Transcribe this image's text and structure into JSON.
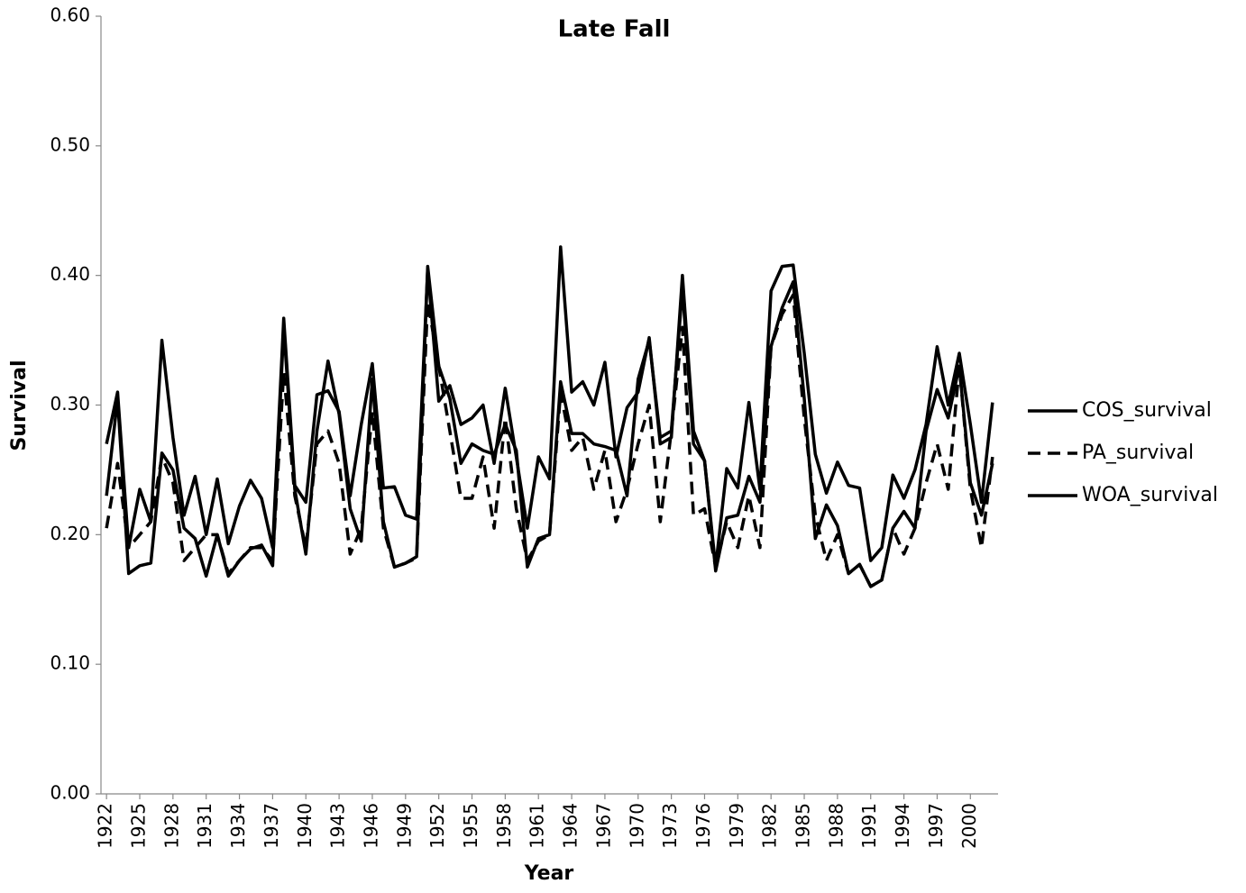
{
  "chart_data": {
    "type": "line",
    "title": "Late Fall",
    "x_label": "Year",
    "y_label": "Survival",
    "x": [
      1922,
      1923,
      1924,
      1925,
      1926,
      1927,
      1928,
      1929,
      1930,
      1931,
      1932,
      1933,
      1934,
      1935,
      1936,
      1937,
      1938,
      1939,
      1940,
      1941,
      1942,
      1943,
      1944,
      1945,
      1946,
      1947,
      1948,
      1949,
      1950,
      1951,
      1952,
      1953,
      1954,
      1955,
      1956,
      1957,
      1958,
      1959,
      1960,
      1961,
      1962,
      1963,
      1964,
      1965,
      1966,
      1967,
      1968,
      1969,
      1970,
      1971,
      1972,
      1973,
      1974,
      1975,
      1976,
      1977,
      1978,
      1979,
      1980,
      1981,
      1982,
      1983,
      1984,
      1985,
      1986,
      1987,
      1988,
      1989,
      1990,
      1991,
      1992,
      1993,
      1994,
      1995,
      1996,
      1997,
      1998,
      1999,
      2000,
      2001,
      2002
    ],
    "series": [
      {
        "name": "COS_survival",
        "color": "#000000",
        "dashed": false,
        "values": [
          0.27,
          0.31,
          0.19,
          0.235,
          0.21,
          0.35,
          0.275,
          0.215,
          0.245,
          0.2,
          0.243,
          0.193,
          0.222,
          0.242,
          0.228,
          0.19,
          0.367,
          0.238,
          0.225,
          0.308,
          0.311,
          0.295,
          0.23,
          0.285,
          0.332,
          0.236,
          0.237,
          0.215,
          0.212,
          0.405,
          0.303,
          0.315,
          0.285,
          0.29,
          0.3,
          0.255,
          0.313,
          0.26,
          0.205,
          0.26,
          0.243,
          0.422,
          0.31,
          0.318,
          0.3,
          0.333,
          0.26,
          0.298,
          0.31,
          0.352,
          0.27,
          0.275,
          0.4,
          0.28,
          0.257,
          0.175,
          0.251,
          0.236,
          0.302,
          0.235,
          0.388,
          0.407,
          0.408,
          0.34,
          0.262,
          0.232,
          0.256,
          0.238,
          0.236,
          0.18,
          0.19,
          0.246,
          0.228,
          0.25,
          0.285,
          0.345,
          0.3,
          0.34,
          0.285,
          0.225,
          0.302
        ]
      },
      {
        "name": "PA_survival",
        "color": "#000000",
        "dashed": true,
        "values": [
          0.205,
          0.255,
          0.19,
          0.2,
          0.21,
          0.26,
          0.24,
          0.18,
          0.19,
          0.2,
          0.2,
          0.17,
          0.18,
          0.19,
          0.19,
          0.18,
          0.325,
          0.23,
          0.19,
          0.27,
          0.28,
          0.255,
          0.185,
          0.205,
          0.295,
          0.205,
          0.175,
          0.178,
          0.182,
          0.38,
          0.33,
          0.28,
          0.228,
          0.228,
          0.26,
          0.205,
          0.29,
          0.22,
          0.18,
          0.195,
          0.2,
          0.31,
          0.265,
          0.275,
          0.235,
          0.265,
          0.21,
          0.235,
          0.27,
          0.3,
          0.21,
          0.28,
          0.36,
          0.215,
          0.22,
          0.175,
          0.21,
          0.19,
          0.23,
          0.19,
          0.345,
          0.37,
          0.385,
          0.29,
          0.215,
          0.18,
          0.2,
          0.17,
          0.177,
          0.16,
          0.165,
          0.205,
          0.185,
          0.205,
          0.24,
          0.27,
          0.235,
          0.33,
          0.235,
          0.19,
          0.26
        ]
      },
      {
        "name": "WOA_survival",
        "color": "#000000",
        "dashed": false,
        "values": [
          0.23,
          0.305,
          0.17,
          0.176,
          0.178,
          0.263,
          0.25,
          0.205,
          0.197,
          0.168,
          0.2,
          0.168,
          0.18,
          0.189,
          0.192,
          0.176,
          0.36,
          0.235,
          0.185,
          0.28,
          0.334,
          0.293,
          0.22,
          0.195,
          0.32,
          0.21,
          0.175,
          0.178,
          0.183,
          0.407,
          0.33,
          0.305,
          0.255,
          0.27,
          0.265,
          0.262,
          0.285,
          0.265,
          0.175,
          0.197,
          0.2,
          0.318,
          0.278,
          0.278,
          0.27,
          0.268,
          0.265,
          0.23,
          0.32,
          0.35,
          0.275,
          0.28,
          0.39,
          0.27,
          0.257,
          0.172,
          0.213,
          0.215,
          0.245,
          0.225,
          0.345,
          0.375,
          0.395,
          0.305,
          0.197,
          0.223,
          0.207,
          0.17,
          0.177,
          0.16,
          0.165,
          0.205,
          0.218,
          0.205,
          0.28,
          0.312,
          0.29,
          0.33,
          0.24,
          0.215,
          0.255
        ]
      }
    ],
    "xlim": [
      1921.5,
      2002.5
    ],
    "xticks": [
      1922,
      1925,
      1928,
      1931,
      1934,
      1937,
      1940,
      1943,
      1946,
      1949,
      1952,
      1955,
      1958,
      1961,
      1964,
      1967,
      1970,
      1973,
      1976,
      1979,
      1982,
      1985,
      1988,
      1991,
      1994,
      1997,
      2000
    ],
    "ylim": [
      0,
      0.6
    ],
    "yticks": [
      {
        "value": 0,
        "label": "0.00"
      },
      {
        "value": 0.1,
        "label": "0.10"
      },
      {
        "value": 0.2,
        "label": "0.20"
      },
      {
        "value": 0.3,
        "label": "0.30"
      },
      {
        "value": 0.4,
        "label": "0.40"
      },
      {
        "value": 0.5,
        "label": "0.50"
      },
      {
        "value": 0.6,
        "label": "0.60"
      }
    ],
    "grid": false,
    "legend": "right"
  }
}
